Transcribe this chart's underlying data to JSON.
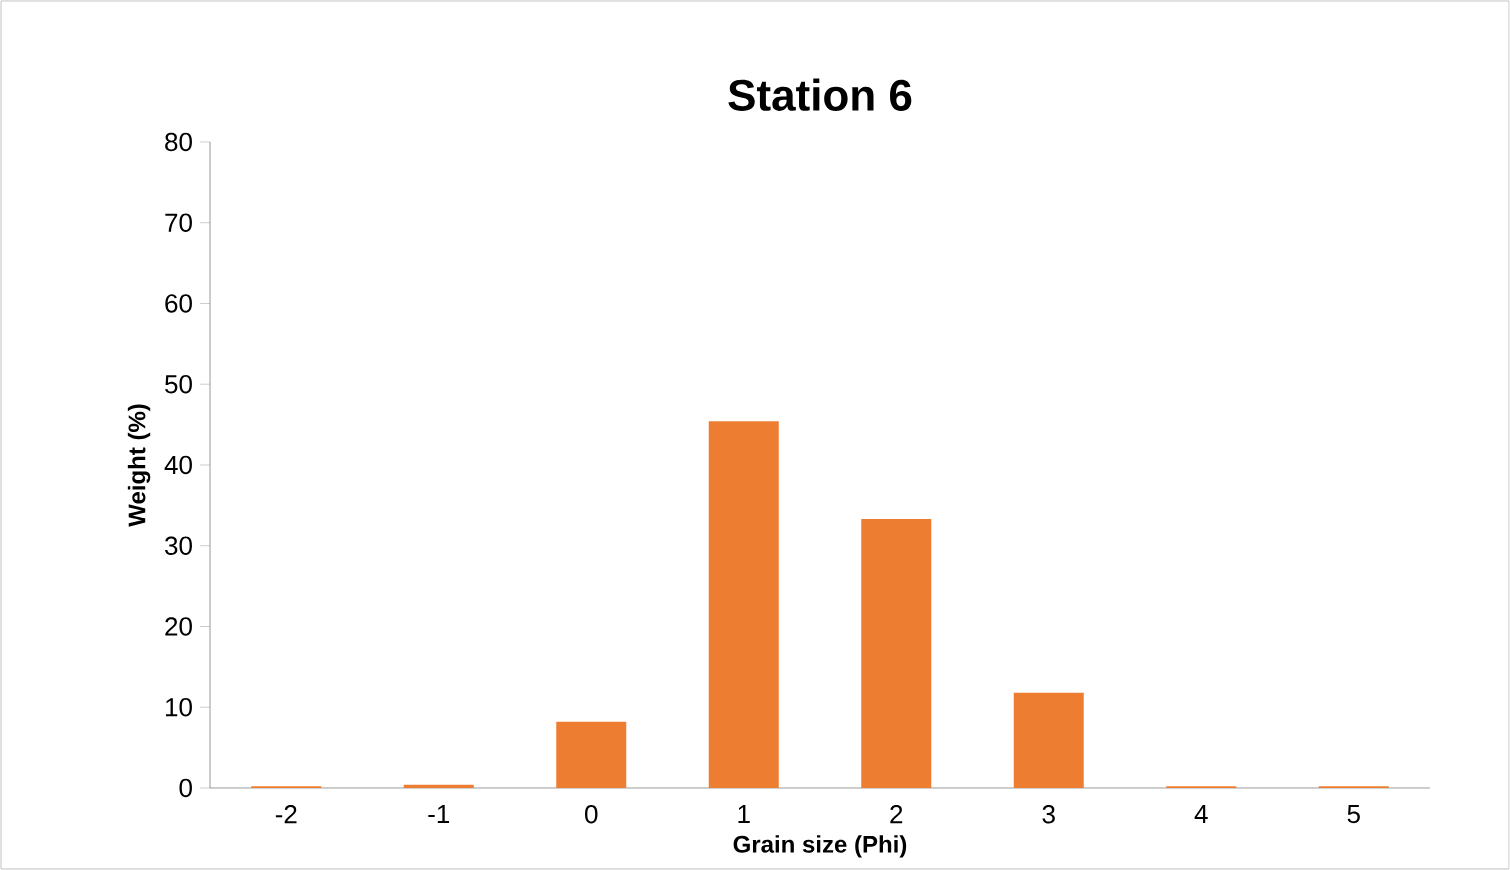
{
  "chart_data": {
    "type": "bar",
    "title": "Station 6",
    "xlabel": "Grain size (Phi)",
    "ylabel": "Weight (%)",
    "categories": [
      "-2",
      "-1",
      "0",
      "1",
      "2",
      "3",
      "4",
      "5"
    ],
    "values": [
      0.2,
      0.4,
      8.2,
      45.4,
      33.3,
      11.8,
      0.2,
      0.2
    ],
    "color": "#ed7d31",
    "ylim": [
      0,
      80
    ],
    "yticks": [
      0,
      10,
      20,
      30,
      40,
      50,
      60,
      70,
      80
    ],
    "grid": false
  }
}
